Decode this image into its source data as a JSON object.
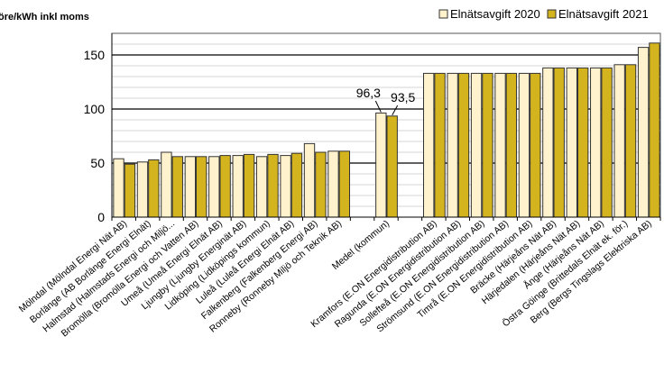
{
  "chart_data": {
    "type": "bar",
    "title": "",
    "ylabel": "öre/kWh inkl moms",
    "xlabel": "",
    "ylim": [
      0,
      170
    ],
    "yticks": [
      0,
      50,
      100,
      150
    ],
    "minor_grid_step": 10,
    "grid": true,
    "legend_placement": "top-right",
    "colors": {
      "2020": "#FFF2CC",
      "2021": "#D4B41E",
      "outline": "#333333"
    },
    "categories": [
      "Mölndal (Mölndal Energi Nät AB)",
      "Borlänge (AB Borlänge Energi Elnät)",
      "Halmstad (Halmstads Energi och Miljö...",
      "Bromölla (Bromölla Energi och Vatten AB)",
      "Umeå (Umeå Energi Elnät AB)",
      "Ljungby (Ljungby Energinät AB)",
      "Lidköping (Lidköpings kommun)",
      "Luleå (Luleå Energi Elnät AB)",
      "Falkenberg (Falkenberg Energi AB)",
      "Ronneby (Ronneby Miljö och Teknik AB)",
      "",
      "Medel (kommun)",
      "",
      "Kramfors (E.ON Energidistribution AB)",
      "Ragunda (E.ON Energidistribution AB)",
      "Sollefteå (E.ON Energidistribution AB)",
      "Strömsund (E.ON Energidistribution AB)",
      "Timrå (E.ON Energidistribution AB)",
      "Bräcke (Härjeåns Nät AB)",
      "Härjedalen (Härjeåns Nät AB)",
      "Ånge (Härjeåns Nät AB)",
      "Östra Göinge (Brittedals Elnät ek. för.)",
      "Berg (Bergs Tingslags Elektriska AB)"
    ],
    "series": [
      {
        "name": "Elnätsavgift 2020",
        "values": [
          54,
          51,
          60,
          56,
          56,
          57,
          56,
          57,
          68,
          61,
          null,
          96.3,
          null,
          133,
          133,
          133,
          133,
          133,
          138,
          138,
          138,
          141,
          157
        ]
      },
      {
        "name": "Elnätsavgift 2021",
        "values": [
          49,
          53,
          56,
          56,
          57,
          58,
          58,
          59,
          60,
          61,
          null,
          93.5,
          null,
          133,
          133,
          133,
          133,
          133,
          138,
          138,
          138,
          141,
          161
        ]
      }
    ],
    "data_labels": [
      {
        "category": "Medel (kommun)",
        "series": "Elnätsavgift 2020",
        "text": "96,3"
      },
      {
        "category": "Medel (kommun)",
        "series": "Elnätsavgift 2021",
        "text": "93,5"
      }
    ]
  }
}
